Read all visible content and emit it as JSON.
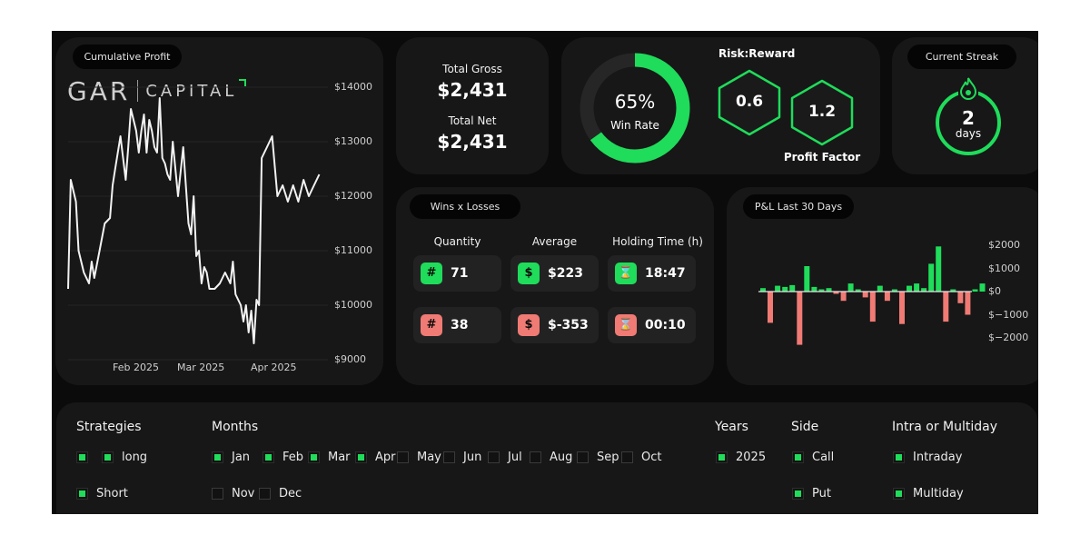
{
  "colors": {
    "green": "#1fdc5a",
    "red": "#f07a74",
    "card": "#171717",
    "bg": "#0b0b0b"
  },
  "cumulative": {
    "pill": "Cumulative Profit",
    "logo": {
      "left": "GAR",
      "right": "CAPITAL"
    },
    "chart_data": {
      "type": "line",
      "title": "",
      "x_ticks": [
        "Feb 2025",
        "Mar 2025",
        "Apr 2025"
      ],
      "y_ticks": [
        "$14000",
        "$13000",
        "$12000",
        "$11000",
        "$10000",
        "$9000"
      ],
      "ylim": [
        9000,
        14000
      ],
      "x_range": [
        0,
        100
      ],
      "series": [
        {
          "x": [
            0,
            1,
            3,
            4,
            6,
            8,
            9,
            10,
            12,
            14,
            16,
            17,
            18,
            19,
            20,
            21,
            22,
            23,
            24,
            25,
            26,
            27,
            28,
            29,
            30,
            31,
            32,
            33,
            34,
            35,
            36,
            37,
            38,
            39,
            40,
            42,
            44,
            46,
            47,
            48,
            49,
            50,
            51,
            52,
            53,
            54,
            56,
            58,
            60,
            62,
            63,
            64,
            65,
            66,
            67,
            68,
            69,
            70,
            71,
            72,
            73,
            74,
            76,
            78,
            80,
            82,
            84,
            86,
            88,
            90,
            92,
            94,
            96
          ],
          "y": [
            10300,
            12300,
            11900,
            11000,
            10600,
            10400,
            10800,
            10500,
            11000,
            11500,
            11600,
            12200,
            12500,
            12800,
            13100,
            12700,
            12300,
            12900,
            13600,
            13400,
            13200,
            12800,
            13200,
            13500,
            12800,
            13400,
            13200,
            12900,
            12800,
            13800,
            12700,
            12600,
            12400,
            12300,
            13000,
            12000,
            12900,
            11500,
            11300,
            12000,
            10900,
            11000,
            10400,
            10700,
            10600,
            10300,
            10300,
            10400,
            10600,
            10400,
            10800,
            10200,
            10100,
            10000,
            9700,
            10000,
            9500,
            9900,
            9300,
            10100,
            10000,
            12700,
            12900,
            13100,
            12000,
            12200,
            11900,
            12200,
            11900,
            12300,
            12000,
            12200,
            12400
          ]
        }
      ]
    }
  },
  "gross": {
    "gross_label": "Total Gross",
    "gross_value": "$2,431",
    "net_label": "Total Net",
    "net_value": "$2,431"
  },
  "winrate": {
    "value_text": "65%",
    "label": "Win Rate",
    "percent": 65
  },
  "risk": {
    "title": "Risk:Reward",
    "rr_value": "0.6",
    "pf_value": "1.2",
    "pf_label": "Profit Factor"
  },
  "streak": {
    "pill": "Current Streak",
    "value": "2",
    "unit": "days",
    "icon": "flame-icon"
  },
  "wl": {
    "pill": "Wins x Losses",
    "headers": [
      "Quantity",
      "Average",
      "Holding Time (h)"
    ],
    "icons": [
      "#",
      "$",
      "⌛"
    ],
    "wins": [
      "71",
      "$223",
      "18:47"
    ],
    "losses": [
      "38",
      "$-353",
      "00:10"
    ]
  },
  "pnl": {
    "pill": "P&L Last 30 Days",
    "chart_data": {
      "type": "bar",
      "title": "",
      "y_ticks": [
        "$2000",
        "$1000",
        "$0",
        "$−1000",
        "$−2000"
      ],
      "ylim": [
        -2400,
        2400
      ],
      "values": [
        150,
        -1350,
        250,
        200,
        280,
        -2300,
        1100,
        200,
        100,
        150,
        -100,
        -400,
        350,
        100,
        -250,
        -1300,
        250,
        -400,
        100,
        -1400,
        250,
        350,
        150,
        1200,
        1950,
        -1300,
        100,
        -500,
        -1000,
        100,
        350
      ]
    }
  },
  "filters": {
    "strategies": {
      "title": "Strategies",
      "items": [
        {
          "label": "",
          "checked": true
        },
        {
          "label": "long",
          "checked": true
        },
        {
          "label": "Short",
          "checked": true
        }
      ]
    },
    "months": {
      "title": "Months",
      "items": [
        {
          "label": "Jan",
          "checked": true
        },
        {
          "label": "Feb",
          "checked": true
        },
        {
          "label": "Mar",
          "checked": true
        },
        {
          "label": "Apr",
          "checked": true
        },
        {
          "label": "May",
          "checked": false
        },
        {
          "label": "Jun",
          "checked": false
        },
        {
          "label": "Jul",
          "checked": false
        },
        {
          "label": "Aug",
          "checked": false
        },
        {
          "label": "Sep",
          "checked": false
        },
        {
          "label": "Oct",
          "checked": false
        },
        {
          "label": "Nov",
          "checked": false
        },
        {
          "label": "Dec",
          "checked": false
        }
      ]
    },
    "years": {
      "title": "Years",
      "items": [
        {
          "label": "2025",
          "checked": true
        }
      ]
    },
    "side": {
      "title": "Side",
      "items": [
        {
          "label": "Call",
          "checked": true
        },
        {
          "label": "Put",
          "checked": true
        }
      ]
    },
    "intra": {
      "title": "Intra or Multiday",
      "items": [
        {
          "label": "Intraday",
          "checked": true
        },
        {
          "label": "Multiday",
          "checked": true
        }
      ]
    }
  }
}
